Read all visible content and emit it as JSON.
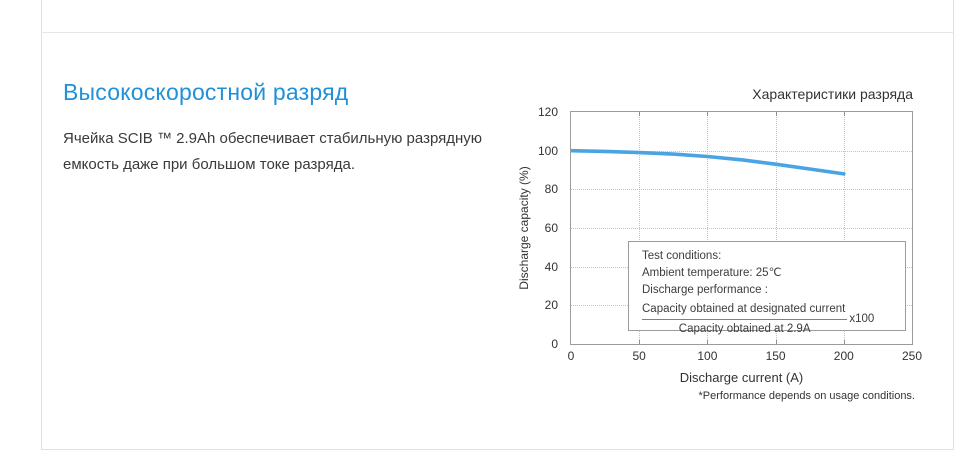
{
  "colors": {
    "heading_blue": "#2190d9",
    "line_blue": "#4aa4e4",
    "panel_border": "#e1e1e1",
    "plot_border": "#9b9b9b"
  },
  "section": {
    "heading": "Высокоскоростной разряд",
    "paragraph": "Ячейка SCIB ™ 2.9Ah обеспечивает стабильную разрядную емкость даже при большом токе разряда."
  },
  "chart_data": {
    "type": "line",
    "title": "Характеристики разряда",
    "xlabel": "Discharge current (A)",
    "ylabel": "Discharge capacity (%)",
    "xlim": [
      0,
      250
    ],
    "ylim": [
      0,
      120
    ],
    "xticks": [
      0,
      50,
      100,
      150,
      200,
      250
    ],
    "yticks": [
      0,
      20,
      40,
      60,
      80,
      100,
      120
    ],
    "grid": true,
    "legend": "none",
    "series": [
      {
        "name": "discharge-capacity",
        "color": "#4aa4e4",
        "x": [
          0,
          25,
          50,
          75,
          100,
          125,
          150,
          175,
          200
        ],
        "y": [
          100,
          99.6,
          99,
          98.2,
          97,
          95.3,
          93,
          90.5,
          88
        ]
      }
    ],
    "annotation": {
      "lines": [
        "Test conditions:",
        "Ambient temperature: 25℃",
        "Discharge performance :"
      ],
      "fraction_numerator": "Capacity obtained at designated current",
      "fraction_denominator": "Capacity obtained at 2.9A",
      "fraction_multiplier": "x100"
    },
    "footnote": "*Performance depends on usage conditions."
  }
}
